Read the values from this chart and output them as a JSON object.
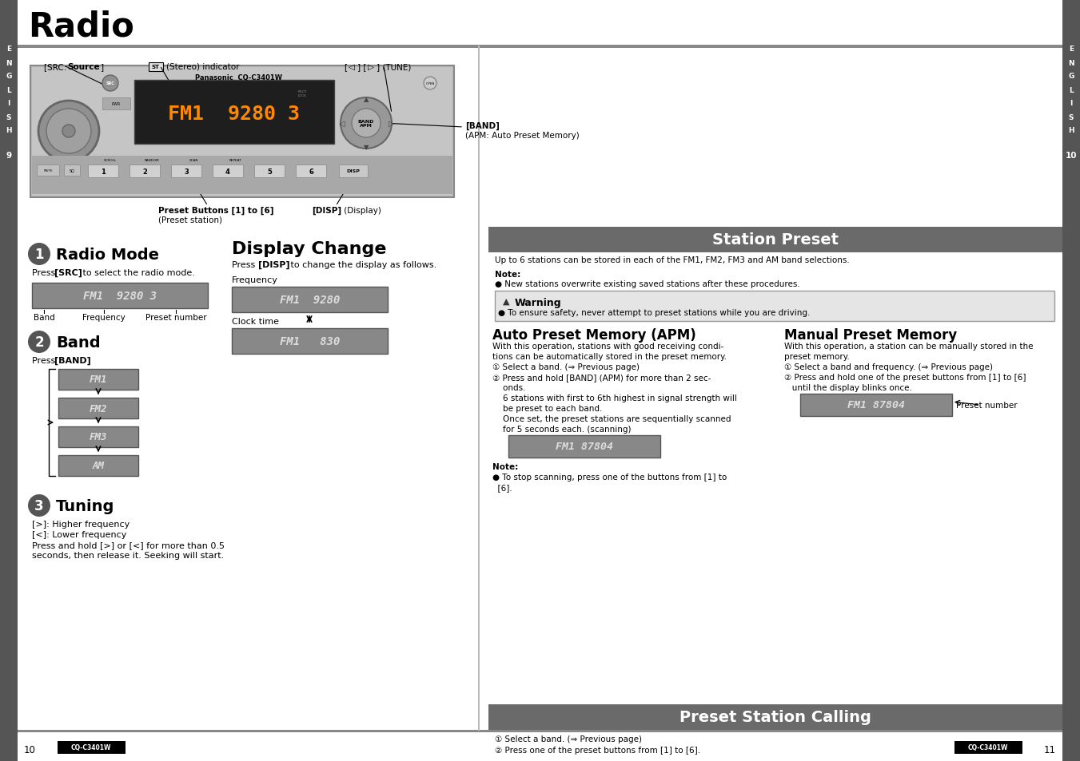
{
  "title": "Radio",
  "sidebar_text": [
    "E",
    "N",
    "G",
    "L",
    "I",
    "S",
    "H"
  ],
  "sidebar_num_left": "9",
  "sidebar_num_right": "10",
  "page_left": "10",
  "page_right": "11",
  "model": "CQ-C3401W",
  "src_label_bold": "[SRC:",
  "src_label_norm": " Source]",
  "stereo_label": "(Stereo) indicator",
  "tune_label_bold": "[◁] [▷]",
  "tune_label_norm": " (TUNE)",
  "band_label_bold": "[BAND]",
  "band_label_norm": "\n(APM: Auto Preset Memory)",
  "preset_buttons_label": "Preset Buttons [1] to [6]",
  "preset_buttons_sub": "(Preset station)",
  "disp_label_bold": "[DISP]",
  "disp_label_norm": " (Display)",
  "section1_num": "1",
  "section1_title": "Radio Mode",
  "section1_body_norm": "Press ",
  "section1_body_bold": "[SRC]",
  "section1_body_end": " to select the radio mode.",
  "section1_display": "FM1  9280 3",
  "section1_labels": [
    "Band",
    "Frequency",
    "Preset number"
  ],
  "section2_num": "2",
  "section2_title": "Band",
  "section2_body": "Press ",
  "section2_body_bold": "[BAND]",
  "section2_body_end": ".",
  "section2_bands": [
    "FM1",
    "FM2",
    "FM3",
    "AM"
  ],
  "section3_num": "3",
  "section3_title": "Tuning",
  "section3_lines": [
    "[>]: Higher frequency",
    "[<]: Lower frequency",
    "Press and hold [>] or [<] for more than 0.5",
    "seconds, then release it. Seeking will start."
  ],
  "display_title": "Display Change",
  "display_body1": "Press ",
  "display_body_bold": "[DISP]",
  "display_body2": " to change the display as follows.",
  "display_freq_label": "Frequency",
  "display_freq_text": "FM1  9280",
  "display_clock_label": "Clock time",
  "display_clock_text": "FM1   830",
  "station_preset_title": "Station Preset",
  "station_preset_body": "Up to 6 stations can be stored in each of the FM1, FM2, FM3 and AM band selections.",
  "sp_note_label": "Note:",
  "sp_note_body": "● New stations overwrite existing saved stations after these procedures.",
  "warning_title": "⚠ Warning",
  "warning_body": "● To ensure safety, never attempt to preset stations while you are driving.",
  "apm_title": "Auto Preset Memory (APM)",
  "apm_body": [
    "With this operation, stations with good receiving condi-",
    "tions can be automatically stored in the preset memory.",
    "① Select a band. (⇒ Previous page)",
    "② Press and hold [BAND] (APM) for more than 2 sec-",
    "    onds.",
    "    6 stations with first to 6th highest in signal strength will",
    "    be preset to each band.",
    "    Once set, the preset stations are sequentially scanned",
    "    for 5 seconds each. (scanning)"
  ],
  "apm_display": "FM1 87804",
  "apm_note_label": "Note:",
  "apm_note_body1": "● To stop scanning, press one of the buttons from [1] to",
  "apm_note_body2": "  [6].",
  "manual_title": "Manual Preset Memory",
  "manual_body": [
    "With this operation, a station can be manually stored in the",
    "preset memory.",
    "① Select a band and frequency. (⇒ Previous page)",
    "② Press and hold one of the preset buttons from [1] to [6]",
    "   until the display blinks once."
  ],
  "manual_display": "FM1 87804",
  "manual_preset_label": "Preset number",
  "preset_calling_title": "Preset Station Calling",
  "pc_step1": "① Select a band. (⇒ Previous page)",
  "pc_step2": "② Press one of the preset buttons from [1] to [6].",
  "sidebar_bg": "#555555",
  "header_line_color": "#808080",
  "display_bg": "#888888",
  "display_text_color": "#dddddd",
  "section_header_bg": "#777777",
  "warning_bg": "#e8e8e8",
  "warning_border": "#aaaaaa"
}
